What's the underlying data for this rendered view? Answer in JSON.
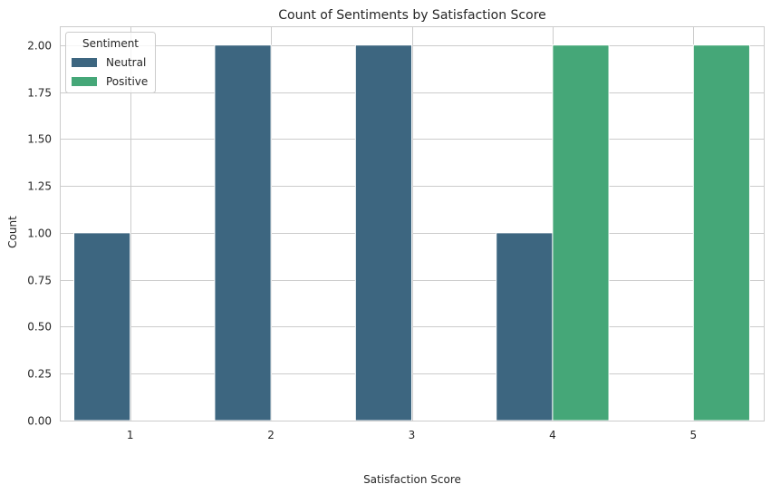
{
  "chart_data": {
    "type": "bar",
    "title": "Count of Sentiments by Satisfaction Score",
    "xlabel": "Satisfaction Score",
    "ylabel": "Count",
    "categories": [
      "1",
      "2",
      "3",
      "4",
      "5"
    ],
    "ylim": [
      0,
      2.1
    ],
    "yticks": [
      0,
      0.25,
      0.5,
      0.75,
      1.0,
      1.25,
      1.5,
      1.75,
      2.0
    ],
    "ytick_labels": [
      "0.00",
      "0.25",
      "0.50",
      "0.75",
      "1.00",
      "1.25",
      "1.50",
      "1.75",
      "2.00"
    ],
    "grid": true,
    "legend": {
      "title": "Sentiment",
      "placement": "top-left"
    },
    "series": [
      {
        "name": "Neutral",
        "color": "#3d6680",
        "values": [
          1,
          2,
          2,
          1,
          0
        ]
      },
      {
        "name": "Positive",
        "color": "#45a778",
        "values": [
          0,
          0,
          0,
          2,
          2
        ]
      }
    ]
  }
}
